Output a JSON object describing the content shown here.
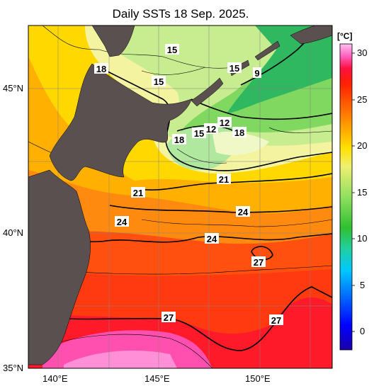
{
  "title": "Daily SSTs 18 Sep. 2025.",
  "colorbar": {
    "unit": "[°C]",
    "ticks": [
      "30",
      "25",
      "20",
      "15",
      "10",
      "5",
      "0"
    ],
    "min": -2,
    "max": 31,
    "colors": [
      "#1a00a8",
      "#0000ff",
      "#0070ff",
      "#00c8ff",
      "#20d0a0",
      "#30c030",
      "#90e060",
      "#f0f070",
      "#ffe000",
      "#ffa000",
      "#ff6000",
      "#ff2000",
      "#ff1040",
      "#ff60c0",
      "#ffc0f0"
    ]
  },
  "axes": {
    "lat_labels": [
      "45°N",
      "40°N",
      "35°N"
    ],
    "lon_labels": [
      "140°E",
      "145°E",
      "150°E"
    ]
  },
  "contour_labels": [
    "15",
    "18",
    "15",
    "15",
    "9",
    "12",
    "12",
    "15",
    "18",
    "18",
    "21",
    "21",
    "24",
    "24",
    "24",
    "27",
    "27",
    "27"
  ],
  "colors": {
    "land": "#5a5050",
    "contour": "#000000",
    "grid": "#808080"
  }
}
